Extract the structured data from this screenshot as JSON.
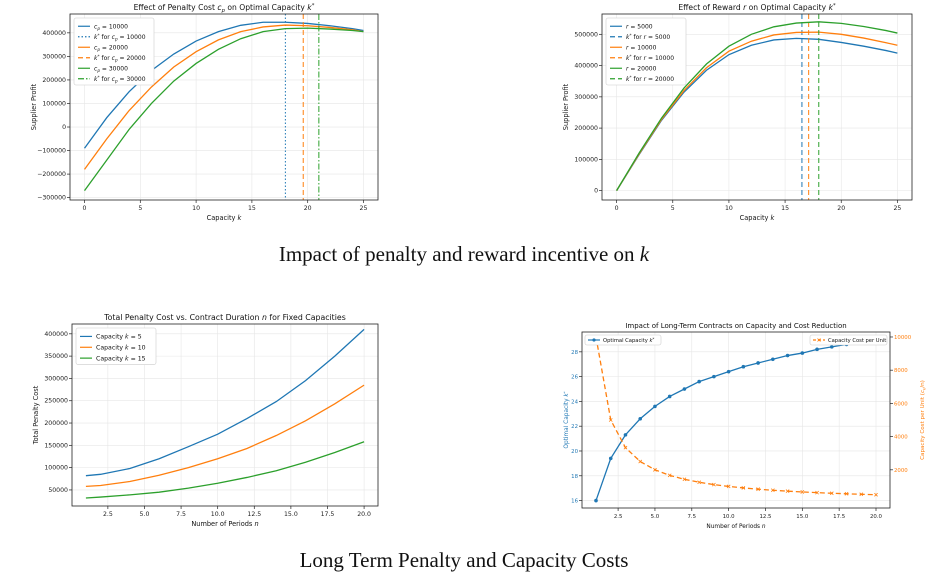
{
  "captions": {
    "top_prefix": "Impact of penalty and reward incentive on ",
    "top_var": "k",
    "bottom": "Long Term Penalty and Capacity Costs"
  },
  "colors": {
    "blue": "#1f77b4",
    "orange": "#ff7f0e",
    "green": "#2ca02c",
    "grid": "#e6e6e6"
  },
  "chart_data": [
    {
      "id": "penalty",
      "type": "line",
      "title": "Effect of Penalty Cost c_p on Optimal Capacity k*",
      "title_parts": [
        "Effect of Penalty Cost ",
        "c",
        "p",
        " on Optimal Capacity ",
        "k",
        "*"
      ],
      "xlabel": "Capacity k",
      "xlabel_parts": [
        "Capacity ",
        "k"
      ],
      "ylabel": "Supplier Profit",
      "xlim": [
        -1.3,
        26.3
      ],
      "ylim": [
        -310000,
        480000
      ],
      "xticks": [
        0,
        5,
        10,
        15,
        20,
        25
      ],
      "yticks": [
        -300000,
        -200000,
        -100000,
        0,
        100000,
        200000,
        300000,
        400000
      ],
      "ytick_labels": [
        "−300000",
        "−200000",
        "−100000",
        "0",
        "100000",
        "200000",
        "300000",
        "400000"
      ],
      "grid": true,
      "legend_position": "top-left",
      "series": [
        {
          "name": "c_p = 10000",
          "color": "#1f77b4",
          "style": "solid",
          "x": [
            0,
            2,
            4,
            6,
            8,
            10,
            12,
            14,
            16,
            18,
            20,
            22,
            24,
            25
          ],
          "y": [
            -90000,
            40000,
            150000,
            240000,
            310000,
            365000,
            405000,
            432000,
            445000,
            445000,
            440000,
            430000,
            418000,
            410000
          ]
        },
        {
          "name": "k* for c_p = 10000",
          "color": "#1f77b4",
          "style": "dotted",
          "vline": 18
        },
        {
          "name": "c_p = 20000",
          "color": "#ff7f0e",
          "style": "solid",
          "x": [
            0,
            2,
            4,
            6,
            8,
            10,
            12,
            14,
            16,
            18,
            20,
            22,
            24,
            25
          ],
          "y": [
            -180000,
            -50000,
            70000,
            170000,
            255000,
            320000,
            370000,
            405000,
            425000,
            433000,
            430000,
            423000,
            413000,
            405000
          ]
        },
        {
          "name": "k* for c_p = 20000",
          "color": "#ff7f0e",
          "style": "dashed",
          "vline": 19.6
        },
        {
          "name": "c_p = 30000",
          "color": "#2ca02c",
          "style": "solid",
          "x": [
            0,
            2,
            4,
            6,
            8,
            10,
            12,
            14,
            16,
            18,
            20,
            22,
            24,
            25
          ],
          "y": [
            -270000,
            -140000,
            -10000,
            100000,
            195000,
            270000,
            330000,
            375000,
            405000,
            418000,
            420000,
            416000,
            410000,
            405000
          ]
        },
        {
          "name": "k* for c_p = 30000",
          "color": "#2ca02c",
          "style": "dashdot",
          "vline": 21
        }
      ],
      "legend": [
        {
          "pre": "",
          "var": "c",
          "sub": "p",
          "post": " = 10000",
          "color": "#1f77b4",
          "style": "solid"
        },
        {
          "pre": "",
          "var": "k",
          "sup": "*",
          "post": " for ",
          "var2": "c",
          "sub2": "p",
          "post2": " = 10000",
          "color": "#1f77b4",
          "style": "dotted"
        },
        {
          "pre": "",
          "var": "c",
          "sub": "p",
          "post": " = 20000",
          "color": "#ff7f0e",
          "style": "solid"
        },
        {
          "pre": "",
          "var": "k",
          "sup": "*",
          "post": " for ",
          "var2": "c",
          "sub2": "p",
          "post2": " = 20000",
          "color": "#ff7f0e",
          "style": "dashed"
        },
        {
          "pre": "",
          "var": "c",
          "sub": "p",
          "post": " = 30000",
          "color": "#2ca02c",
          "style": "solid"
        },
        {
          "pre": "",
          "var": "k",
          "sup": "*",
          "post": " for ",
          "var2": "c",
          "sub2": "p",
          "post2": " = 30000",
          "color": "#2ca02c",
          "style": "dashdot"
        }
      ]
    },
    {
      "id": "reward",
      "type": "line",
      "title": "Effect of Reward r on Optimal Capacity k*",
      "title_parts": [
        "Effect of Reward ",
        "r",
        "",
        " on Optimal Capacity ",
        "k",
        "*"
      ],
      "xlabel": "Capacity k",
      "xlabel_parts": [
        "Capacity ",
        "k"
      ],
      "ylabel": "Supplier Profit",
      "xlim": [
        -1.3,
        26.3
      ],
      "ylim": [
        -30000,
        565000
      ],
      "xticks": [
        0,
        5,
        10,
        15,
        20,
        25
      ],
      "yticks": [
        0,
        100000,
        200000,
        300000,
        400000,
        500000
      ],
      "ytick_labels": [
        "0",
        "100000",
        "200000",
        "300000",
        "400000",
        "500000"
      ],
      "grid": true,
      "legend_position": "top-left",
      "series": [
        {
          "name": "r = 5000",
          "color": "#1f77b4",
          "style": "solid",
          "x": [
            0,
            2,
            4,
            6,
            8,
            10,
            12,
            14,
            16,
            18,
            20,
            22,
            24,
            25
          ],
          "y": [
            0,
            115000,
            225000,
            315000,
            385000,
            435000,
            465000,
            482000,
            487000,
            484000,
            474000,
            462000,
            448000,
            440000
          ]
        },
        {
          "name": "k* for r = 5000",
          "color": "#1f77b4",
          "style": "dashed",
          "vline": 16.5
        },
        {
          "name": "r = 10000",
          "color": "#ff7f0e",
          "style": "solid",
          "x": [
            0,
            2,
            4,
            6,
            8,
            10,
            12,
            14,
            16,
            18,
            20,
            22,
            24,
            25
          ],
          "y": [
            0,
            117000,
            228000,
            320000,
            393000,
            446000,
            478000,
            498000,
            506000,
            507000,
            500000,
            488000,
            473000,
            465000
          ]
        },
        {
          "name": "k* for r = 10000",
          "color": "#ff7f0e",
          "style": "dashed",
          "vline": 17.1
        },
        {
          "name": "r = 20000",
          "color": "#2ca02c",
          "style": "solid",
          "x": [
            0,
            2,
            4,
            6,
            8,
            10,
            12,
            14,
            16,
            18,
            20,
            22,
            24,
            25
          ],
          "y": [
            0,
            120000,
            232000,
            328000,
            405000,
            462000,
            500000,
            524000,
            536000,
            540000,
            535000,
            525000,
            512000,
            504000
          ]
        },
        {
          "name": "k* for r = 20000",
          "color": "#2ca02c",
          "style": "dashed",
          "vline": 18
        }
      ],
      "legend": [
        {
          "pre": "",
          "var": "r",
          "post": " = 5000",
          "color": "#1f77b4",
          "style": "solid"
        },
        {
          "pre": "",
          "var": "k",
          "sup": "*",
          "post": " for ",
          "var2": "r",
          "post2": " = 5000",
          "color": "#1f77b4",
          "style": "dashed"
        },
        {
          "pre": "",
          "var": "r",
          "post": " = 10000",
          "color": "#ff7f0e",
          "style": "solid"
        },
        {
          "pre": "",
          "var": "k",
          "sup": "*",
          "post": " for ",
          "var2": "r",
          "post2": " = 10000",
          "color": "#ff7f0e",
          "style": "dashed"
        },
        {
          "pre": "",
          "var": "r",
          "post": " = 20000",
          "color": "#2ca02c",
          "style": "solid"
        },
        {
          "pre": "",
          "var": "k",
          "sup": "*",
          "post": " for ",
          "var2": "r",
          "post2": " = 20000",
          "color": "#2ca02c",
          "style": "dashed"
        }
      ]
    },
    {
      "id": "duration",
      "type": "line",
      "title": "Total Penalty Cost vs. Contract Duration n for Fixed Capacities",
      "title_parts": [
        "Total Penalty Cost vs. Contract Duration ",
        "n",
        "",
        " for Fixed Capacities",
        "",
        ""
      ],
      "xlabel": "Number of Periods n",
      "xlabel_parts": [
        "Number of Periods ",
        "n"
      ],
      "ylabel": "Total Penalty Cost",
      "xlim": [
        0.05,
        20.95
      ],
      "ylim": [
        14000,
        422000
      ],
      "xticks": [
        2.5,
        5.0,
        7.5,
        10.0,
        12.5,
        15.0,
        17.5,
        20.0
      ],
      "xtick_labels": [
        "2.5",
        "5.0",
        "7.5",
        "10.0",
        "12.5",
        "15.0",
        "17.5",
        "20.0"
      ],
      "yticks": [
        50000,
        100000,
        150000,
        200000,
        250000,
        300000,
        350000,
        400000
      ],
      "ytick_labels": [
        "50000",
        "100000",
        "150000",
        "200000",
        "250000",
        "300000",
        "350000",
        "400000"
      ],
      "grid": true,
      "legend_position": "top-left",
      "series": [
        {
          "name": "Capacity k = 5",
          "color": "#1f77b4",
          "style": "solid",
          "x": [
            1,
            2,
            4,
            6,
            8,
            10,
            12,
            14,
            16,
            18,
            20
          ],
          "y": [
            82000,
            85000,
            98000,
            120000,
            147000,
            175000,
            210000,
            248000,
            295000,
            350000,
            410000
          ]
        },
        {
          "name": "Capacity k = 10",
          "color": "#ff7f0e",
          "style": "solid",
          "x": [
            1,
            2,
            4,
            6,
            8,
            10,
            12,
            14,
            16,
            18,
            20
          ],
          "y": [
            58000,
            60000,
            69000,
            83000,
            100000,
            120000,
            143000,
            172000,
            205000,
            243000,
            285000
          ]
        },
        {
          "name": "Capacity k = 15",
          "color": "#2ca02c",
          "style": "solid",
          "x": [
            1,
            2,
            4,
            6,
            8,
            10,
            12,
            14,
            16,
            18,
            20
          ],
          "y": [
            32000,
            34000,
            39000,
            45000,
            54000,
            65000,
            78000,
            93000,
            112000,
            134000,
            158000
          ]
        }
      ],
      "legend": [
        {
          "pre": "Capacity ",
          "var": "k",
          "post": " = 5",
          "color": "#1f77b4",
          "style": "solid"
        },
        {
          "pre": "Capacity ",
          "var": "k",
          "post": " = 10",
          "color": "#ff7f0e",
          "style": "solid"
        },
        {
          "pre": "Capacity ",
          "var": "k",
          "post": " = 15",
          "color": "#2ca02c",
          "style": "solid"
        }
      ]
    },
    {
      "id": "longterm",
      "type": "line",
      "title": "Impact of Long-Term Contracts on Capacity and Cost Reduction",
      "title_parts": [
        "Impact of Long-Term Contracts on Capacity and Cost Reduction",
        "",
        "",
        "",
        "",
        ""
      ],
      "xlabel": "Number of Periods n",
      "xlabel_parts": [
        "Number of Periods ",
        "n"
      ],
      "ylabel": "Optimal Capacity k*",
      "y2label": "Capacity Cost per Unit (c_k/n)",
      "xlim": [
        0.05,
        20.95
      ],
      "ylim": [
        15.4,
        29.6
      ],
      "y2lim": [
        -300,
        10300
      ],
      "xticks": [
        2.5,
        5.0,
        7.5,
        10.0,
        12.5,
        15.0,
        17.5,
        20.0
      ],
      "xtick_labels": [
        "2.5",
        "5.0",
        "7.5",
        "10.0",
        "12.5",
        "15.0",
        "17.5",
        "20.0"
      ],
      "yticks": [
        16,
        18,
        20,
        22,
        24,
        26,
        28
      ],
      "ytick_labels": [
        "16",
        "18",
        "20",
        "22",
        "24",
        "26",
        "28"
      ],
      "y2ticks": [
        2000,
        4000,
        6000,
        8000,
        10000
      ],
      "y2tick_labels": [
        "2000",
        "4000",
        "6000",
        "8000",
        "10000"
      ],
      "grid": true,
      "series": [
        {
          "name": "Optimal Capacity k*",
          "color": "#1f77b4",
          "style": "solid",
          "marker": "circle",
          "axis": "left",
          "x": [
            1,
            2,
            3,
            4,
            5,
            6,
            7,
            8,
            9,
            10,
            11,
            12,
            13,
            14,
            15,
            16,
            17,
            18,
            19,
            20
          ],
          "y": [
            16.0,
            19.4,
            21.3,
            22.6,
            23.6,
            24.4,
            25.0,
            25.6,
            26.0,
            26.4,
            26.8,
            27.1,
            27.4,
            27.7,
            27.9,
            28.2,
            28.4,
            28.6,
            28.8,
            29.0
          ]
        },
        {
          "name": "Capacity Cost per Unit",
          "color": "#ff7f0e",
          "style": "dashed",
          "marker": "x",
          "axis": "right",
          "x": [
            1,
            2,
            3,
            4,
            5,
            6,
            7,
            8,
            9,
            10,
            11,
            12,
            13,
            14,
            15,
            16,
            17,
            18,
            19,
            20
          ],
          "y": [
            10000,
            5000,
            3333,
            2500,
            2000,
            1667,
            1429,
            1250,
            1111,
            1000,
            909,
            833,
            769,
            714,
            667,
            625,
            588,
            556,
            526,
            500
          ]
        }
      ],
      "legend_left": {
        "pre": "Optimal Capacity ",
        "var": "k",
        "sup": "*",
        "post": "",
        "color": "#1f77b4"
      },
      "legend_right": {
        "text": "Capacity Cost per Unit",
        "color": "#ff7f0e"
      },
      "y2label_parts": [
        "Capacity Cost per Unit (",
        "c",
        "k",
        "/n)"
      ]
    }
  ]
}
